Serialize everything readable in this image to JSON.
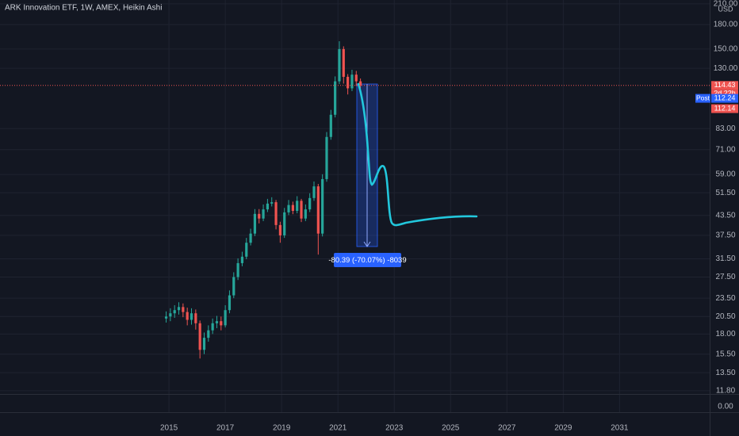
{
  "chart_data": {
    "type": "candlestick",
    "title": "ARK Innovation ETF, 1W, AMEX, Heikin Ashi",
    "currency": "USD",
    "log_scale": true,
    "grid": true,
    "up_color": "#26a69a",
    "down_color": "#ef5350",
    "x": [
      2014.9,
      2015.05,
      2015.2,
      2015.35,
      2015.5,
      2015.65,
      2015.8,
      2015.95,
      2016.1,
      2016.25,
      2016.4,
      2016.55,
      2016.7,
      2016.85,
      2017.0,
      2017.15,
      2017.3,
      2017.45,
      2017.6,
      2017.75,
      2017.9,
      2018.05,
      2018.2,
      2018.35,
      2018.5,
      2018.65,
      2018.8,
      2018.95,
      2019.1,
      2019.25,
      2019.4,
      2019.55,
      2019.7,
      2019.85,
      2020.0,
      2020.15,
      2020.3,
      2020.45,
      2020.6,
      2020.75,
      2020.9,
      2021.05,
      2021.2,
      2021.35,
      2021.5,
      2021.65,
      2021.8
    ],
    "open": [
      20.2,
      20.5,
      21.0,
      21.5,
      22.0,
      21.2,
      20.0,
      21.0,
      19.5,
      16.0,
      17.5,
      18.5,
      19.5,
      19.8,
      19.2,
      21.5,
      24.0,
      27.5,
      30.5,
      32.0,
      35.5,
      38.0,
      44.0,
      42.5,
      45.5,
      47.5,
      48.0,
      40.5,
      37.5,
      44.5,
      47.0,
      45.0,
      48.5,
      42.5,
      45.5,
      49.5,
      54.0,
      38.0,
      57.0,
      78.0,
      92.0,
      118.0,
      150.0,
      122.0,
      112.0,
      124.0,
      118.0
    ],
    "close": [
      20.5,
      21.0,
      21.5,
      22.0,
      21.2,
      20.0,
      21.0,
      19.5,
      16.0,
      17.5,
      18.5,
      19.5,
      19.8,
      19.2,
      21.5,
      24.0,
      27.5,
      30.5,
      32.0,
      35.5,
      38.0,
      44.0,
      42.5,
      45.5,
      47.5,
      48.0,
      40.5,
      37.5,
      44.5,
      47.0,
      45.0,
      48.5,
      42.5,
      45.5,
      49.5,
      54.0,
      38.0,
      57.0,
      78.0,
      92.0,
      118.0,
      150.0,
      122.0,
      112.0,
      124.0,
      118.0,
      114.4
    ],
    "high": [
      21.3,
      21.8,
      22.3,
      22.8,
      22.6,
      21.9,
      21.8,
      21.6,
      19.9,
      18.2,
      19.2,
      20.2,
      20.6,
      20.5,
      22.3,
      24.9,
      28.5,
      31.6,
      33.2,
      36.8,
      39.4,
      45.6,
      45.6,
      47.2,
      49.2,
      49.8,
      48.8,
      41.5,
      46.0,
      48.8,
      48.2,
      50.2,
      49.2,
      47.2,
      51.3,
      56.0,
      55.0,
      59.1,
      80.9,
      95.4,
      122.4,
      159.0,
      153.1,
      124.5,
      128.6,
      127.5,
      120.5
    ],
    "low": [
      19.6,
      19.8,
      20.3,
      20.8,
      20.4,
      19.2,
      19.3,
      18.6,
      15.0,
      15.5,
      17.0,
      18.0,
      18.8,
      18.5,
      18.9,
      21.0,
      23.5,
      26.9,
      29.8,
      31.4,
      34.8,
      37.3,
      41.0,
      41.7,
      44.6,
      46.5,
      39.2,
      35.5,
      36.8,
      43.6,
      43.9,
      44.2,
      41.4,
      41.7,
      44.6,
      48.5,
      32.5,
      37.2,
      55.9,
      76.4,
      90.2,
      115.6,
      116.0,
      107.0,
      109.7,
      114.0,
      112.0
    ],
    "xlim": [
      2009.0,
      2034.2
    ],
    "xticks": [
      2015,
      2017,
      2019,
      2021,
      2023,
      2025,
      2027,
      2029,
      2031
    ],
    "ylim": [
      11.52,
      216.1
    ],
    "yticks": [
      {
        "value": 210,
        "label": "210.00"
      },
      {
        "value": 180,
        "label": "180.00"
      },
      {
        "value": 150,
        "label": "150.00"
      },
      {
        "value": 130,
        "label": "130.00"
      },
      {
        "value": 83,
        "label": "83.00"
      },
      {
        "value": 71,
        "label": "71.00"
      },
      {
        "value": 59,
        "label": "59.00"
      },
      {
        "value": 51.5,
        "label": "51.50"
      },
      {
        "value": 43.5,
        "label": "43.50"
      },
      {
        "value": 37.5,
        "label": "37.50"
      },
      {
        "value": 31.5,
        "label": "31.50"
      },
      {
        "value": 27.5,
        "label": "27.50"
      },
      {
        "value": 23.5,
        "label": "23.50"
      },
      {
        "value": 20.5,
        "label": "20.50"
      },
      {
        "value": 18,
        "label": "18.00"
      },
      {
        "value": 15.5,
        "label": "15.50"
      },
      {
        "value": 13.5,
        "label": "13.50"
      },
      {
        "value": 11.8,
        "label": "11.80"
      }
    ],
    "pane2_yticks": [
      {
        "value": 0,
        "label": "0.00"
      }
    ],
    "last_price": 114.43,
    "countdown": "2d 22h",
    "post_label": "Post",
    "post_price": 112.24,
    "bid_price": 112.14,
    "measure_label": "-80.39 (-70.07%) -8039"
  }
}
